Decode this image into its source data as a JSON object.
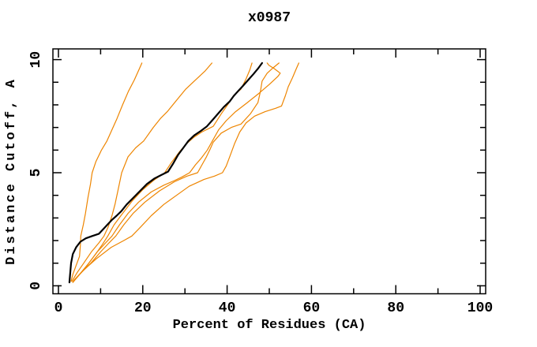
{
  "window": {
    "background": "#ffffff",
    "foreground": "#000000"
  },
  "chart_data": {
    "type": "line",
    "title": "x0987",
    "xlabel": "Percent of Residues (CA)",
    "ylabel": "Distance Cutoff, A",
    "xlim": [
      0,
      100
    ],
    "ylim": [
      0,
      10
    ],
    "grid": false,
    "legend": "none",
    "frame": "box-with-inward-ticks-all-sides",
    "axis_color": "#000000",
    "x_ticks": {
      "minor_step": 10,
      "major_values": [
        0,
        20,
        40,
        60,
        80,
        100
      ],
      "major_labels": [
        "0",
        "20",
        "40",
        "60",
        "80",
        "100"
      ]
    },
    "y_ticks": {
      "minor_step": 1,
      "major_values": [
        0,
        5,
        10
      ],
      "major_labels": [
        "0",
        "5",
        "10"
      ],
      "label_rotation_deg": -90
    },
    "series": [
      {
        "name": "orange-curve-1",
        "color": "#ee8500",
        "stroke_width": 1.2,
        "points": [
          [
            3.0,
            0.2
          ],
          [
            3.4,
            0.5
          ],
          [
            4.2,
            0.9
          ],
          [
            5.0,
            1.3
          ],
          [
            5.2,
            1.8
          ],
          [
            5.3,
            2.2
          ],
          [
            5.9,
            2.7
          ],
          [
            6.4,
            3.2
          ],
          [
            7.0,
            3.9
          ],
          [
            7.6,
            4.5
          ],
          [
            8.0,
            5.0
          ],
          [
            8.9,
            5.5
          ],
          [
            10.2,
            6.0
          ],
          [
            11.5,
            6.4
          ],
          [
            12.7,
            6.9
          ],
          [
            13.9,
            7.4
          ],
          [
            15.2,
            8.0
          ],
          [
            16.6,
            8.6
          ],
          [
            18.0,
            9.1
          ],
          [
            19.2,
            9.6
          ],
          [
            19.8,
            9.85
          ]
        ]
      },
      {
        "name": "orange-curve-2",
        "color": "#ee8500",
        "stroke_width": 1.2,
        "points": [
          [
            3.2,
            0.2
          ],
          [
            4.5,
            0.6
          ],
          [
            6.0,
            1.0
          ],
          [
            7.8,
            1.5
          ],
          [
            9.6,
            1.9
          ],
          [
            10.8,
            2.2
          ],
          [
            11.8,
            2.6
          ],
          [
            12.7,
            3.1
          ],
          [
            13.4,
            3.6
          ],
          [
            14.1,
            4.2
          ],
          [
            15.0,
            5.0
          ],
          [
            16.5,
            5.7
          ],
          [
            18.3,
            6.1
          ],
          [
            20.2,
            6.4
          ],
          [
            22.5,
            7.0
          ],
          [
            24.2,
            7.4
          ],
          [
            25.8,
            7.7
          ],
          [
            28.0,
            8.2
          ],
          [
            30.2,
            8.7
          ],
          [
            32.5,
            9.1
          ],
          [
            34.8,
            9.5
          ],
          [
            36.4,
            9.85
          ]
        ]
      },
      {
        "name": "orange-curve-3",
        "color": "#ee8500",
        "stroke_width": 1.2,
        "points": [
          [
            3.4,
            0.15
          ],
          [
            5.0,
            0.5
          ],
          [
            7.0,
            0.95
          ],
          [
            9.0,
            1.45
          ],
          [
            10.5,
            1.85
          ],
          [
            11.7,
            2.2
          ],
          [
            13.2,
            2.7
          ],
          [
            15.0,
            3.15
          ],
          [
            17.5,
            3.75
          ],
          [
            20.0,
            4.25
          ],
          [
            22.5,
            4.65
          ],
          [
            25.2,
            5.0
          ],
          [
            26.8,
            5.45
          ],
          [
            28.6,
            5.9
          ],
          [
            30.2,
            6.25
          ],
          [
            32.0,
            6.55
          ],
          [
            34.0,
            6.8
          ],
          [
            36.7,
            7.05
          ],
          [
            38.6,
            7.6
          ],
          [
            40.3,
            8.05
          ],
          [
            41.5,
            8.4
          ],
          [
            43.3,
            8.7
          ],
          [
            44.5,
            9.15
          ],
          [
            45.4,
            9.55
          ],
          [
            45.9,
            9.85
          ]
        ]
      },
      {
        "name": "orange-curve-4",
        "color": "#ee8500",
        "stroke_width": 1.2,
        "points": [
          [
            3.4,
            0.15
          ],
          [
            5.2,
            0.55
          ],
          [
            7.2,
            1.0
          ],
          [
            9.2,
            1.5
          ],
          [
            11.2,
            1.9
          ],
          [
            12.7,
            2.2
          ],
          [
            14.5,
            2.7
          ],
          [
            16.5,
            3.2
          ],
          [
            19.0,
            3.7
          ],
          [
            22.0,
            4.15
          ],
          [
            25.0,
            4.45
          ],
          [
            27.5,
            4.65
          ],
          [
            29.2,
            4.8
          ],
          [
            31.1,
            5.0
          ],
          [
            32.5,
            5.35
          ],
          [
            33.9,
            5.65
          ],
          [
            35.3,
            6.0
          ],
          [
            36.5,
            6.4
          ],
          [
            38.0,
            6.9
          ],
          [
            39.8,
            7.3
          ],
          [
            42.0,
            7.7
          ],
          [
            44.8,
            8.1
          ],
          [
            47.5,
            8.5
          ],
          [
            50.0,
            8.9
          ],
          [
            52.0,
            9.25
          ],
          [
            52.6,
            9.4
          ],
          [
            51.2,
            9.6
          ],
          [
            49.9,
            9.75
          ],
          [
            49.5,
            9.85
          ]
        ]
      },
      {
        "name": "orange-curve-5",
        "color": "#ee8500",
        "stroke_width": 1.2,
        "points": [
          [
            3.5,
            0.2
          ],
          [
            5.5,
            0.6
          ],
          [
            7.7,
            1.0
          ],
          [
            10.0,
            1.5
          ],
          [
            12.0,
            1.9
          ],
          [
            13.6,
            2.2
          ],
          [
            15.5,
            2.7
          ],
          [
            17.7,
            3.2
          ],
          [
            20.5,
            3.7
          ],
          [
            24.0,
            4.2
          ],
          [
            27.5,
            4.6
          ],
          [
            30.5,
            4.85
          ],
          [
            33.0,
            5.0
          ],
          [
            34.2,
            5.4
          ],
          [
            35.1,
            5.7
          ],
          [
            36.0,
            6.05
          ],
          [
            36.7,
            6.35
          ],
          [
            38.6,
            6.75
          ],
          [
            41.0,
            7.0
          ],
          [
            43.3,
            7.15
          ],
          [
            45.5,
            7.6
          ],
          [
            47.3,
            8.1
          ],
          [
            47.9,
            8.6
          ],
          [
            48.3,
            9.05
          ],
          [
            49.5,
            9.4
          ],
          [
            51.0,
            9.65
          ],
          [
            52.3,
            9.85
          ]
        ]
      },
      {
        "name": "orange-curve-6",
        "color": "#ee8500",
        "stroke_width": 1.2,
        "points": [
          [
            3.7,
            0.25
          ],
          [
            6.0,
            0.7
          ],
          [
            9.0,
            1.2
          ],
          [
            12.5,
            1.7
          ],
          [
            15.5,
            2.0
          ],
          [
            17.4,
            2.2
          ],
          [
            19.5,
            2.6
          ],
          [
            22.0,
            3.1
          ],
          [
            25.0,
            3.6
          ],
          [
            28.0,
            4.0
          ],
          [
            31.0,
            4.4
          ],
          [
            34.5,
            4.7
          ],
          [
            37.0,
            4.85
          ],
          [
            38.9,
            5.0
          ],
          [
            39.8,
            5.3
          ],
          [
            40.8,
            5.8
          ],
          [
            41.8,
            6.3
          ],
          [
            43.0,
            6.8
          ],
          [
            44.5,
            7.2
          ],
          [
            46.5,
            7.5
          ],
          [
            49.0,
            7.7
          ],
          [
            51.5,
            7.85
          ],
          [
            52.9,
            7.95
          ],
          [
            53.8,
            8.4
          ],
          [
            54.5,
            8.8
          ],
          [
            55.5,
            9.2
          ],
          [
            56.4,
            9.6
          ],
          [
            57.0,
            9.85
          ]
        ]
      },
      {
        "name": "black-curve",
        "color": "#000000",
        "stroke_width": 2.2,
        "points": [
          [
            2.6,
            0.15
          ],
          [
            2.8,
            0.6
          ],
          [
            3.0,
            1.0
          ],
          [
            3.4,
            1.4
          ],
          [
            4.2,
            1.7
          ],
          [
            5.2,
            1.95
          ],
          [
            6.5,
            2.1
          ],
          [
            8.0,
            2.2
          ],
          [
            9.6,
            2.3
          ],
          [
            10.6,
            2.5
          ],
          [
            11.6,
            2.7
          ],
          [
            12.6,
            2.9
          ],
          [
            13.8,
            3.1
          ],
          [
            14.9,
            3.3
          ],
          [
            16.2,
            3.6
          ],
          [
            17.8,
            3.9
          ],
          [
            19.4,
            4.2
          ],
          [
            21.0,
            4.5
          ],
          [
            22.8,
            4.75
          ],
          [
            24.4,
            4.9
          ],
          [
            26.0,
            5.05
          ],
          [
            27.2,
            5.4
          ],
          [
            28.4,
            5.8
          ],
          [
            29.6,
            6.1
          ],
          [
            30.8,
            6.4
          ],
          [
            32.2,
            6.65
          ],
          [
            33.8,
            6.85
          ],
          [
            35.2,
            7.05
          ],
          [
            36.4,
            7.3
          ],
          [
            37.8,
            7.6
          ],
          [
            39.2,
            7.9
          ],
          [
            40.6,
            8.15
          ],
          [
            41.6,
            8.4
          ],
          [
            42.8,
            8.65
          ],
          [
            43.8,
            8.85
          ],
          [
            45.0,
            9.1
          ],
          [
            46.2,
            9.35
          ],
          [
            47.3,
            9.6
          ],
          [
            48.3,
            9.85
          ]
        ]
      }
    ]
  }
}
